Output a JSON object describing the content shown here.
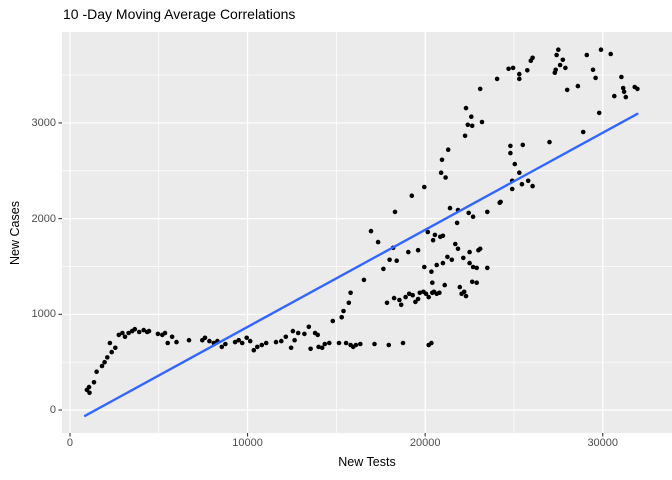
{
  "chart_data": {
    "type": "scatter",
    "title": "10 -Day Moving Average Correlations",
    "xlabel": "New Tests",
    "ylabel": "New Cases",
    "xlim": [
      -450,
      33900
    ],
    "ylim": [
      -240,
      3950
    ],
    "x_ticks": {
      "values": [
        0,
        10000,
        20000,
        30000
      ],
      "labels": [
        "0",
        "10000",
        "20000",
        "30000"
      ]
    },
    "y_ticks": {
      "values": [
        0,
        1000,
        2000,
        3000
      ],
      "labels": [
        "0",
        "1000",
        "2000",
        "3000"
      ]
    },
    "x_minor": [
      5000,
      15000,
      25000
    ],
    "y_minor": [
      500,
      1500,
      2500,
      3500
    ],
    "grid": true,
    "legend_position": "none",
    "colors": {
      "point": "#000000",
      "trend": "#3366FF",
      "panel_bg": "#EBEBEB",
      "grid": "#FFFFFF",
      "tick_mark": "#333333",
      "tick_label": "#4d4d4d",
      "text": "#000000",
      "background": "#FFFFFF"
    },
    "trend_line": {
      "type": "linear",
      "x1": 850,
      "y1": -60,
      "x2": 31950,
      "y2": 3095
    },
    "points": [
      [
        950,
        210
      ],
      [
        1070,
        240
      ],
      [
        1100,
        180
      ],
      [
        1350,
        290
      ],
      [
        1500,
        400
      ],
      [
        1800,
        460
      ],
      [
        1950,
        500
      ],
      [
        2100,
        550
      ],
      [
        2350,
        605
      ],
      [
        2550,
        650
      ],
      [
        2250,
        700
      ],
      [
        2750,
        785
      ],
      [
        2950,
        805
      ],
      [
        3100,
        765
      ],
      [
        3300,
        805
      ],
      [
        3500,
        825
      ],
      [
        3650,
        845
      ],
      [
        3900,
        815
      ],
      [
        4150,
        835
      ],
      [
        4350,
        815
      ],
      [
        4450,
        825
      ],
      [
        4950,
        795
      ],
      [
        5200,
        785
      ],
      [
        5350,
        805
      ],
      [
        5500,
        700
      ],
      [
        5750,
        765
      ],
      [
        6000,
        710
      ],
      [
        6700,
        730
      ],
      [
        7450,
        730
      ],
      [
        7600,
        755
      ],
      [
        7850,
        720
      ],
      [
        8100,
        700
      ],
      [
        8300,
        720
      ],
      [
        8550,
        660
      ],
      [
        8750,
        690
      ],
      [
        9300,
        710
      ],
      [
        9500,
        730
      ],
      [
        9700,
        700
      ],
      [
        9950,
        755
      ],
      [
        10150,
        720
      ],
      [
        10350,
        625
      ],
      [
        10550,
        660
      ],
      [
        10800,
        680
      ],
      [
        11050,
        700
      ],
      [
        11600,
        710
      ],
      [
        11900,
        720
      ],
      [
        12150,
        765
      ],
      [
        12450,
        650
      ],
      [
        12550,
        825
      ],
      [
        12650,
        730
      ],
      [
        12850,
        805
      ],
      [
        13200,
        795
      ],
      [
        13450,
        870
      ],
      [
        13550,
        640
      ],
      [
        13800,
        805
      ],
      [
        13950,
        785
      ],
      [
        14000,
        660
      ],
      [
        14200,
        650
      ],
      [
        14350,
        690
      ],
      [
        14600,
        700
      ],
      [
        14800,
        930
      ],
      [
        15150,
        700
      ],
      [
        15300,
        970
      ],
      [
        15400,
        1035
      ],
      [
        15550,
        700
      ],
      [
        15700,
        1120
      ],
      [
        15800,
        1225
      ],
      [
        15800,
        680
      ],
      [
        15950,
        660
      ],
      [
        16100,
        680
      ],
      [
        16350,
        690
      ],
      [
        17150,
        690
      ],
      [
        17850,
        1120
      ],
      [
        17950,
        680
      ],
      [
        18250,
        1170
      ],
      [
        18550,
        1150
      ],
      [
        18650,
        1100
      ],
      [
        18750,
        700
      ],
      [
        18900,
        1180
      ],
      [
        19100,
        1215
      ],
      [
        19300,
        1200
      ],
      [
        19450,
        1130
      ],
      [
        19600,
        1160
      ],
      [
        19700,
        1225
      ],
      [
        19900,
        1235
      ],
      [
        20050,
        1215
      ],
      [
        20200,
        1180
      ],
      [
        20400,
        1225
      ],
      [
        20500,
        1235
      ],
      [
        20650,
        1215
      ],
      [
        20800,
        1225
      ],
      [
        20200,
        680
      ],
      [
        20350,
        700
      ],
      [
        22050,
        1215
      ],
      [
        22200,
        1235
      ],
      [
        22300,
        1190
      ],
      [
        20900,
        2480
      ],
      [
        21150,
        2430
      ],
      [
        19950,
        2330
      ],
      [
        19250,
        2240
      ],
      [
        25300,
        2480
      ],
      [
        24900,
        2395
      ],
      [
        24900,
        2310
      ],
      [
        25450,
        2360
      ],
      [
        25800,
        2395
      ],
      [
        26050,
        2340
      ],
      [
        24250,
        2175
      ],
      [
        18300,
        2070
      ],
      [
        21400,
        2110
      ],
      [
        21850,
        2090
      ],
      [
        22450,
        2060
      ],
      [
        23500,
        2070
      ],
      [
        22700,
        2020
      ],
      [
        21800,
        1955
      ],
      [
        16950,
        1870
      ],
      [
        17350,
        1755
      ],
      [
        20150,
        1860
      ],
      [
        20550,
        1830
      ],
      [
        20850,
        1810
      ],
      [
        20450,
        1775
      ],
      [
        21000,
        1820
      ],
      [
        21700,
        1735
      ],
      [
        18200,
        1695
      ],
      [
        19050,
        1650
      ],
      [
        19600,
        1670
      ],
      [
        21850,
        1685
      ],
      [
        23000,
        1670
      ],
      [
        17650,
        1475
      ],
      [
        18000,
        1570
      ],
      [
        18400,
        1560
      ],
      [
        19950,
        1495
      ],
      [
        21250,
        1600
      ],
      [
        21500,
        1570
      ],
      [
        21000,
        1535
      ],
      [
        20650,
        1515
      ],
      [
        20350,
        1445
      ],
      [
        22150,
        1590
      ],
      [
        22700,
        1495
      ],
      [
        20400,
        1330
      ],
      [
        21100,
        1305
      ],
      [
        21950,
        1285
      ],
      [
        16550,
        1360
      ],
      [
        25050,
        2570
      ],
      [
        24800,
        2685
      ],
      [
        24200,
        2165
      ],
      [
        23100,
        1685
      ],
      [
        22500,
        1650
      ],
      [
        22500,
        1535
      ],
      [
        22900,
        1485
      ],
      [
        23500,
        1485
      ],
      [
        22650,
        1340
      ],
      [
        22900,
        1330
      ],
      [
        26050,
        3680
      ],
      [
        25950,
        3650
      ],
      [
        25750,
        3550
      ],
      [
        25300,
        3510
      ],
      [
        25300,
        3460
      ],
      [
        24950,
        3575
      ],
      [
        24700,
        3565
      ],
      [
        24050,
        3460
      ],
      [
        23100,
        3355
      ],
      [
        27500,
        3765
      ],
      [
        27400,
        3710
      ],
      [
        27750,
        3660
      ],
      [
        27600,
        3605
      ],
      [
        27900,
        3575
      ],
      [
        27350,
        3555
      ],
      [
        27300,
        3525
      ],
      [
        29100,
        3710
      ],
      [
        29900,
        3765
      ],
      [
        30450,
        3720
      ],
      [
        29450,
        3555
      ],
      [
        29600,
        3470
      ],
      [
        28600,
        3385
      ],
      [
        28000,
        3345
      ],
      [
        31050,
        3480
      ],
      [
        31150,
        3365
      ],
      [
        31200,
        3325
      ],
      [
        31300,
        3270
      ],
      [
        31800,
        3375
      ],
      [
        31950,
        3355
      ],
      [
        30650,
        3280
      ],
      [
        29800,
        3105
      ],
      [
        28900,
        2905
      ],
      [
        22300,
        3155
      ],
      [
        22600,
        3065
      ],
      [
        22400,
        2980
      ],
      [
        22650,
        2970
      ],
      [
        23200,
        3010
      ],
      [
        22250,
        2865
      ],
      [
        24800,
        2760
      ],
      [
        25500,
        2770
      ],
      [
        27000,
        2800
      ],
      [
        21300,
        2720
      ],
      [
        20950,
        2615
      ]
    ]
  }
}
